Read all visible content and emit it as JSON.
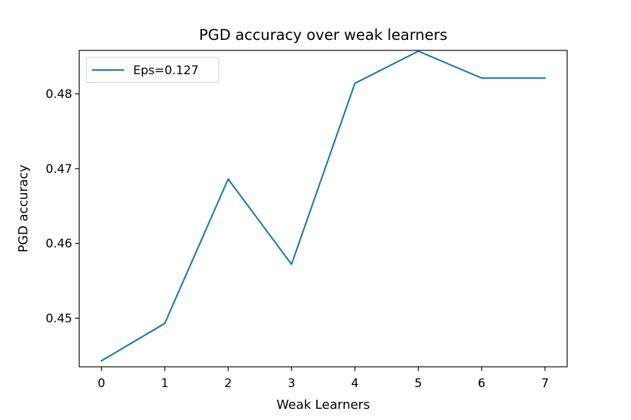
{
  "chart_data": {
    "type": "line",
    "title": "PGD accuracy over weak learners",
    "xlabel": "Weak Learners",
    "ylabel": "PGD accuracy",
    "x": [
      0,
      1,
      2,
      3,
      4,
      5,
      6,
      7
    ],
    "xticks": [
      0,
      1,
      2,
      3,
      4,
      5,
      6,
      7
    ],
    "xtick_labels": [
      "0",
      "1",
      "2",
      "3",
      "4",
      "5",
      "6",
      "7"
    ],
    "yticks": [
      0.45,
      0.46,
      0.47,
      0.48
    ],
    "ytick_labels": [
      "0.45",
      "0.46",
      "0.47",
      "0.48"
    ],
    "xlim": [
      -0.35,
      7.35
    ],
    "ylim": [
      0.4435,
      0.4858
    ],
    "grid": false,
    "legend_position": "upper-left",
    "series": [
      {
        "name": "Eps=0.127",
        "color": "#1f77b4",
        "values": [
          0.4443,
          0.4493,
          0.4686,
          0.4572,
          0.4814,
          0.4857,
          0.4821,
          0.4821
        ]
      }
    ]
  }
}
